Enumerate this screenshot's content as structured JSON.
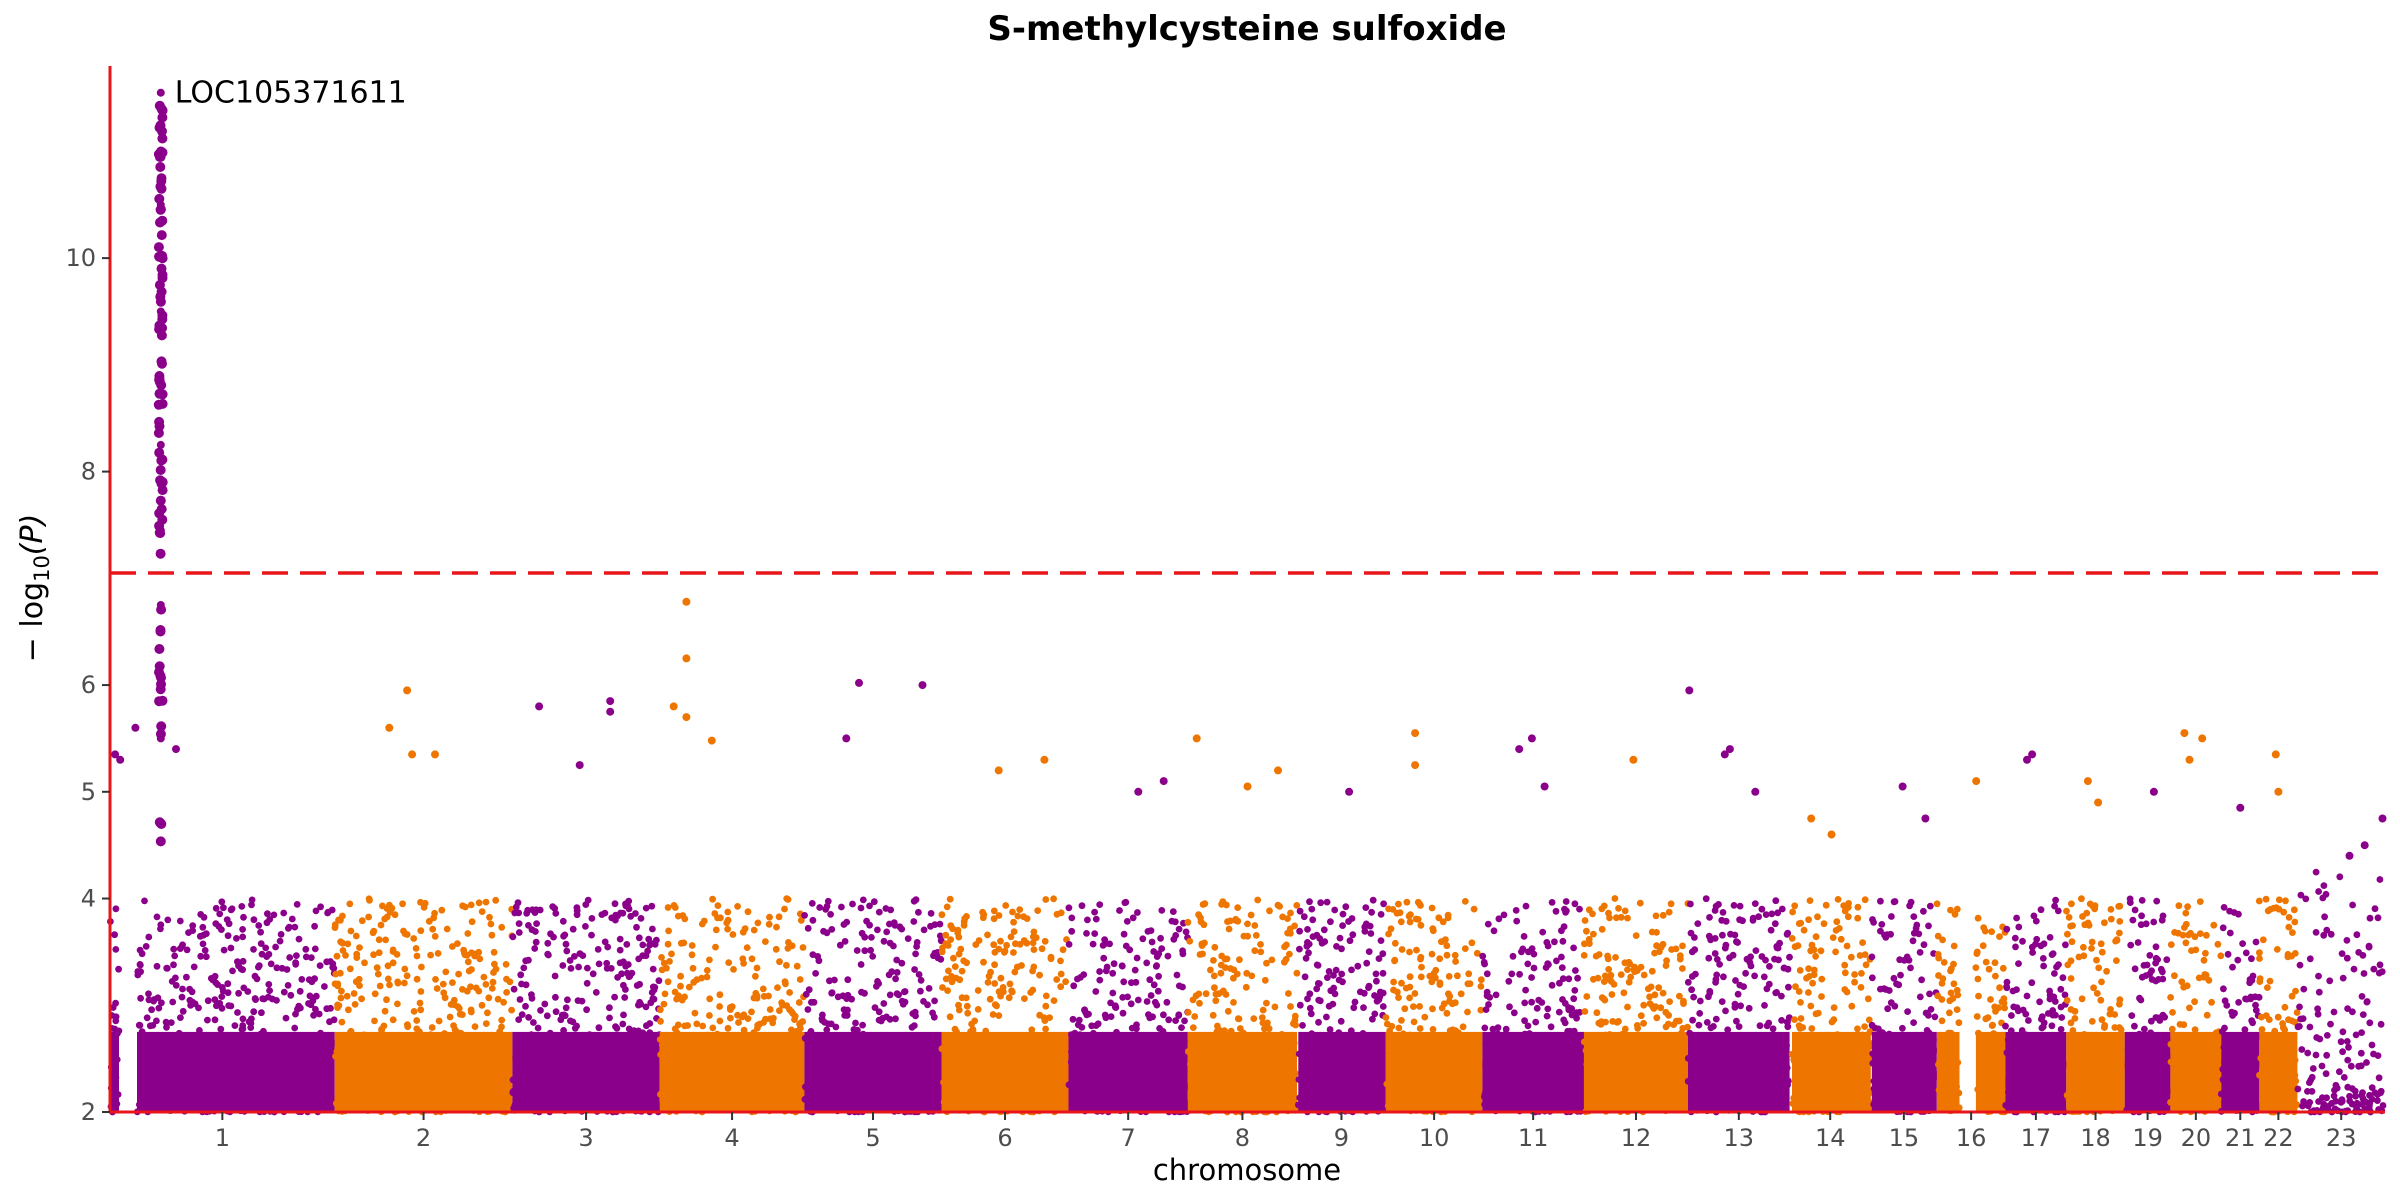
{
  "chart_data": {
    "type": "scatter",
    "title": "S-methylcysteine sulfoxide",
    "xlabel": "chromosome",
    "ylabel": "−log10(P)",
    "ylabel_parts": {
      "prefix": "− log",
      "sub": "10",
      "suffix": "(P)"
    },
    "ylim": [
      2,
      11.8
    ],
    "yticks": [
      2,
      4,
      5,
      6,
      8,
      10
    ],
    "grid": false,
    "colors": {
      "odd": "#8B008B",
      "even": "#EE7600",
      "axis": "#E8161A",
      "threshold": "#E8161A"
    },
    "threshold": 7.05,
    "annotations": [
      {
        "label": "LOC105371611",
        "chromosome": "1",
        "y": 11.55
      }
    ],
    "chromosomes": [
      {
        "label": "1",
        "x_start": 0,
        "x_end": 0.885,
        "gap_at": 0.08,
        "gap_width": 0.04,
        "peaks": [
          {
            "x": 0.2,
            "y": 11.55
          },
          {
            "x": 0.2,
            "y": 10.5
          },
          {
            "x": 0.2,
            "y": 9.5
          },
          {
            "x": 0.2,
            "y": 8.25
          },
          {
            "x": 0.2,
            "y": 7.45
          },
          {
            "x": 0.2,
            "y": 6.75
          },
          {
            "x": 0.2,
            "y": 5.85
          },
          {
            "x": 0.2,
            "y": 5.5
          },
          {
            "x": 0.26,
            "y": 5.4
          },
          {
            "x": 0.02,
            "y": 5.35
          },
          {
            "x": 0.04,
            "y": 5.3
          },
          {
            "x": 0.1,
            "y": 5.6
          }
        ]
      },
      {
        "label": "2",
        "x_start": 0.885,
        "x_end": 1.585,
        "peaks": [
          {
            "x": 1.17,
            "y": 5.95
          },
          {
            "x": 1.1,
            "y": 5.6
          },
          {
            "x": 1.19,
            "y": 5.35
          },
          {
            "x": 1.28,
            "y": 5.35
          }
        ]
      },
      {
        "label": "3",
        "x_start": 1.585,
        "x_end": 2.165,
        "peaks": [
          {
            "x": 1.69,
            "y": 5.8
          },
          {
            "x": 1.85,
            "y": 5.25
          },
          {
            "x": 1.97,
            "y": 5.85
          },
          {
            "x": 1.97,
            "y": 5.75
          }
        ]
      },
      {
        "label": "4",
        "x_start": 2.165,
        "x_end": 2.735,
        "peaks": [
          {
            "x": 2.27,
            "y": 6.78
          },
          {
            "x": 2.27,
            "y": 6.25
          },
          {
            "x": 2.22,
            "y": 5.8
          },
          {
            "x": 2.27,
            "y": 5.7
          },
          {
            "x": 2.37,
            "y": 5.48
          }
        ]
      },
      {
        "label": "5",
        "x_start": 2.735,
        "x_end": 3.275,
        "peaks": [
          {
            "x": 2.95,
            "y": 6.02
          },
          {
            "x": 3.2,
            "y": 6.0
          },
          {
            "x": 2.9,
            "y": 5.5
          }
        ]
      },
      {
        "label": "6",
        "x_start": 3.275,
        "x_end": 3.775,
        "peaks": [
          {
            "x": 3.5,
            "y": 5.2
          },
          {
            "x": 3.68,
            "y": 5.3
          }
        ]
      },
      {
        "label": "7",
        "x_start": 3.775,
        "x_end": 4.245,
        "peaks": [
          {
            "x": 4.05,
            "y": 5.0
          },
          {
            "x": 4.15,
            "y": 5.1
          }
        ]
      },
      {
        "label": "8",
        "x_start": 4.245,
        "x_end": 4.675,
        "peaks": [
          {
            "x": 4.28,
            "y": 5.5
          },
          {
            "x": 4.48,
            "y": 5.05
          },
          {
            "x": 4.6,
            "y": 5.2
          }
        ]
      },
      {
        "label": "9",
        "x_start": 4.675,
        "x_end": 5.025,
        "gap_at": 0.0,
        "gap_width": 0.015,
        "peaks": [
          {
            "x": 4.88,
            "y": 5.0
          }
        ]
      },
      {
        "label": "10",
        "x_start": 5.025,
        "x_end": 5.405,
        "peaks": [
          {
            "x": 5.14,
            "y": 5.55
          },
          {
            "x": 5.14,
            "y": 5.25
          }
        ]
      },
      {
        "label": "11",
        "x_start": 5.405,
        "x_end": 5.805,
        "peaks": [
          {
            "x": 5.6,
            "y": 5.5
          },
          {
            "x": 5.55,
            "y": 5.4
          },
          {
            "x": 5.65,
            "y": 5.05
          }
        ]
      },
      {
        "label": "12",
        "x_start": 5.805,
        "x_end": 6.215,
        "peaks": [
          {
            "x": 6.0,
            "y": 5.3
          }
        ]
      },
      {
        "label": "13",
        "x_start": 6.215,
        "x_end": 6.615,
        "peaks": [
          {
            "x": 6.22,
            "y": 5.95
          },
          {
            "x": 6.38,
            "y": 5.4
          },
          {
            "x": 6.36,
            "y": 5.35
          },
          {
            "x": 6.48,
            "y": 5.0
          }
        ]
      },
      {
        "label": "14",
        "x_start": 6.615,
        "x_end": 6.935,
        "gap_at": 0.0,
        "gap_width": 0.03,
        "peaks": [
          {
            "x": 6.7,
            "y": 4.75
          },
          {
            "x": 6.78,
            "y": 4.6
          }
        ]
      },
      {
        "label": "15",
        "x_start": 6.935,
        "x_end": 7.195,
        "gap_at": 0.0,
        "gap_width": 0.015,
        "peaks": [
          {
            "x": 7.06,
            "y": 5.05
          },
          {
            "x": 7.15,
            "y": 4.75
          }
        ]
      },
      {
        "label": "16",
        "x_start": 7.195,
        "x_end": 7.465,
        "gap_at": 0.45,
        "gap_width": 0.12,
        "peaks": [
          {
            "x": 7.35,
            "y": 5.1
          }
        ]
      },
      {
        "label": "17",
        "x_start": 7.465,
        "x_end": 7.705,
        "peaks": [
          {
            "x": 7.55,
            "y": 5.3
          },
          {
            "x": 7.57,
            "y": 5.35
          }
        ]
      },
      {
        "label": "18",
        "x_start": 7.705,
        "x_end": 7.935,
        "peaks": [
          {
            "x": 7.79,
            "y": 5.1
          },
          {
            "x": 7.83,
            "y": 4.9
          }
        ]
      },
      {
        "label": "19",
        "x_start": 7.935,
        "x_end": 8.115,
        "peaks": [
          {
            "x": 8.05,
            "y": 5.0
          }
        ]
      },
      {
        "label": "20",
        "x_start": 8.115,
        "x_end": 8.315,
        "peaks": [
          {
            "x": 8.17,
            "y": 5.55
          },
          {
            "x": 8.24,
            "y": 5.5
          },
          {
            "x": 8.19,
            "y": 5.3
          }
        ]
      },
      {
        "label": "21",
        "x_start": 8.315,
        "x_end": 8.465,
        "peaks": [
          {
            "x": 8.39,
            "y": 4.85
          }
        ]
      },
      {
        "label": "22",
        "x_start": 8.465,
        "x_end": 8.615,
        "peaks": [
          {
            "x": 8.53,
            "y": 5.35
          },
          {
            "x": 8.54,
            "y": 5.0
          }
        ]
      },
      {
        "label": "23",
        "x_start": 8.615,
        "x_end": 8.96,
        "sparse": true,
        "peaks": [
          {
            "x": 8.95,
            "y": 4.75
          },
          {
            "x": 8.88,
            "y": 4.5
          },
          {
            "x": 8.82,
            "y": 4.4
          }
        ]
      }
    ]
  }
}
